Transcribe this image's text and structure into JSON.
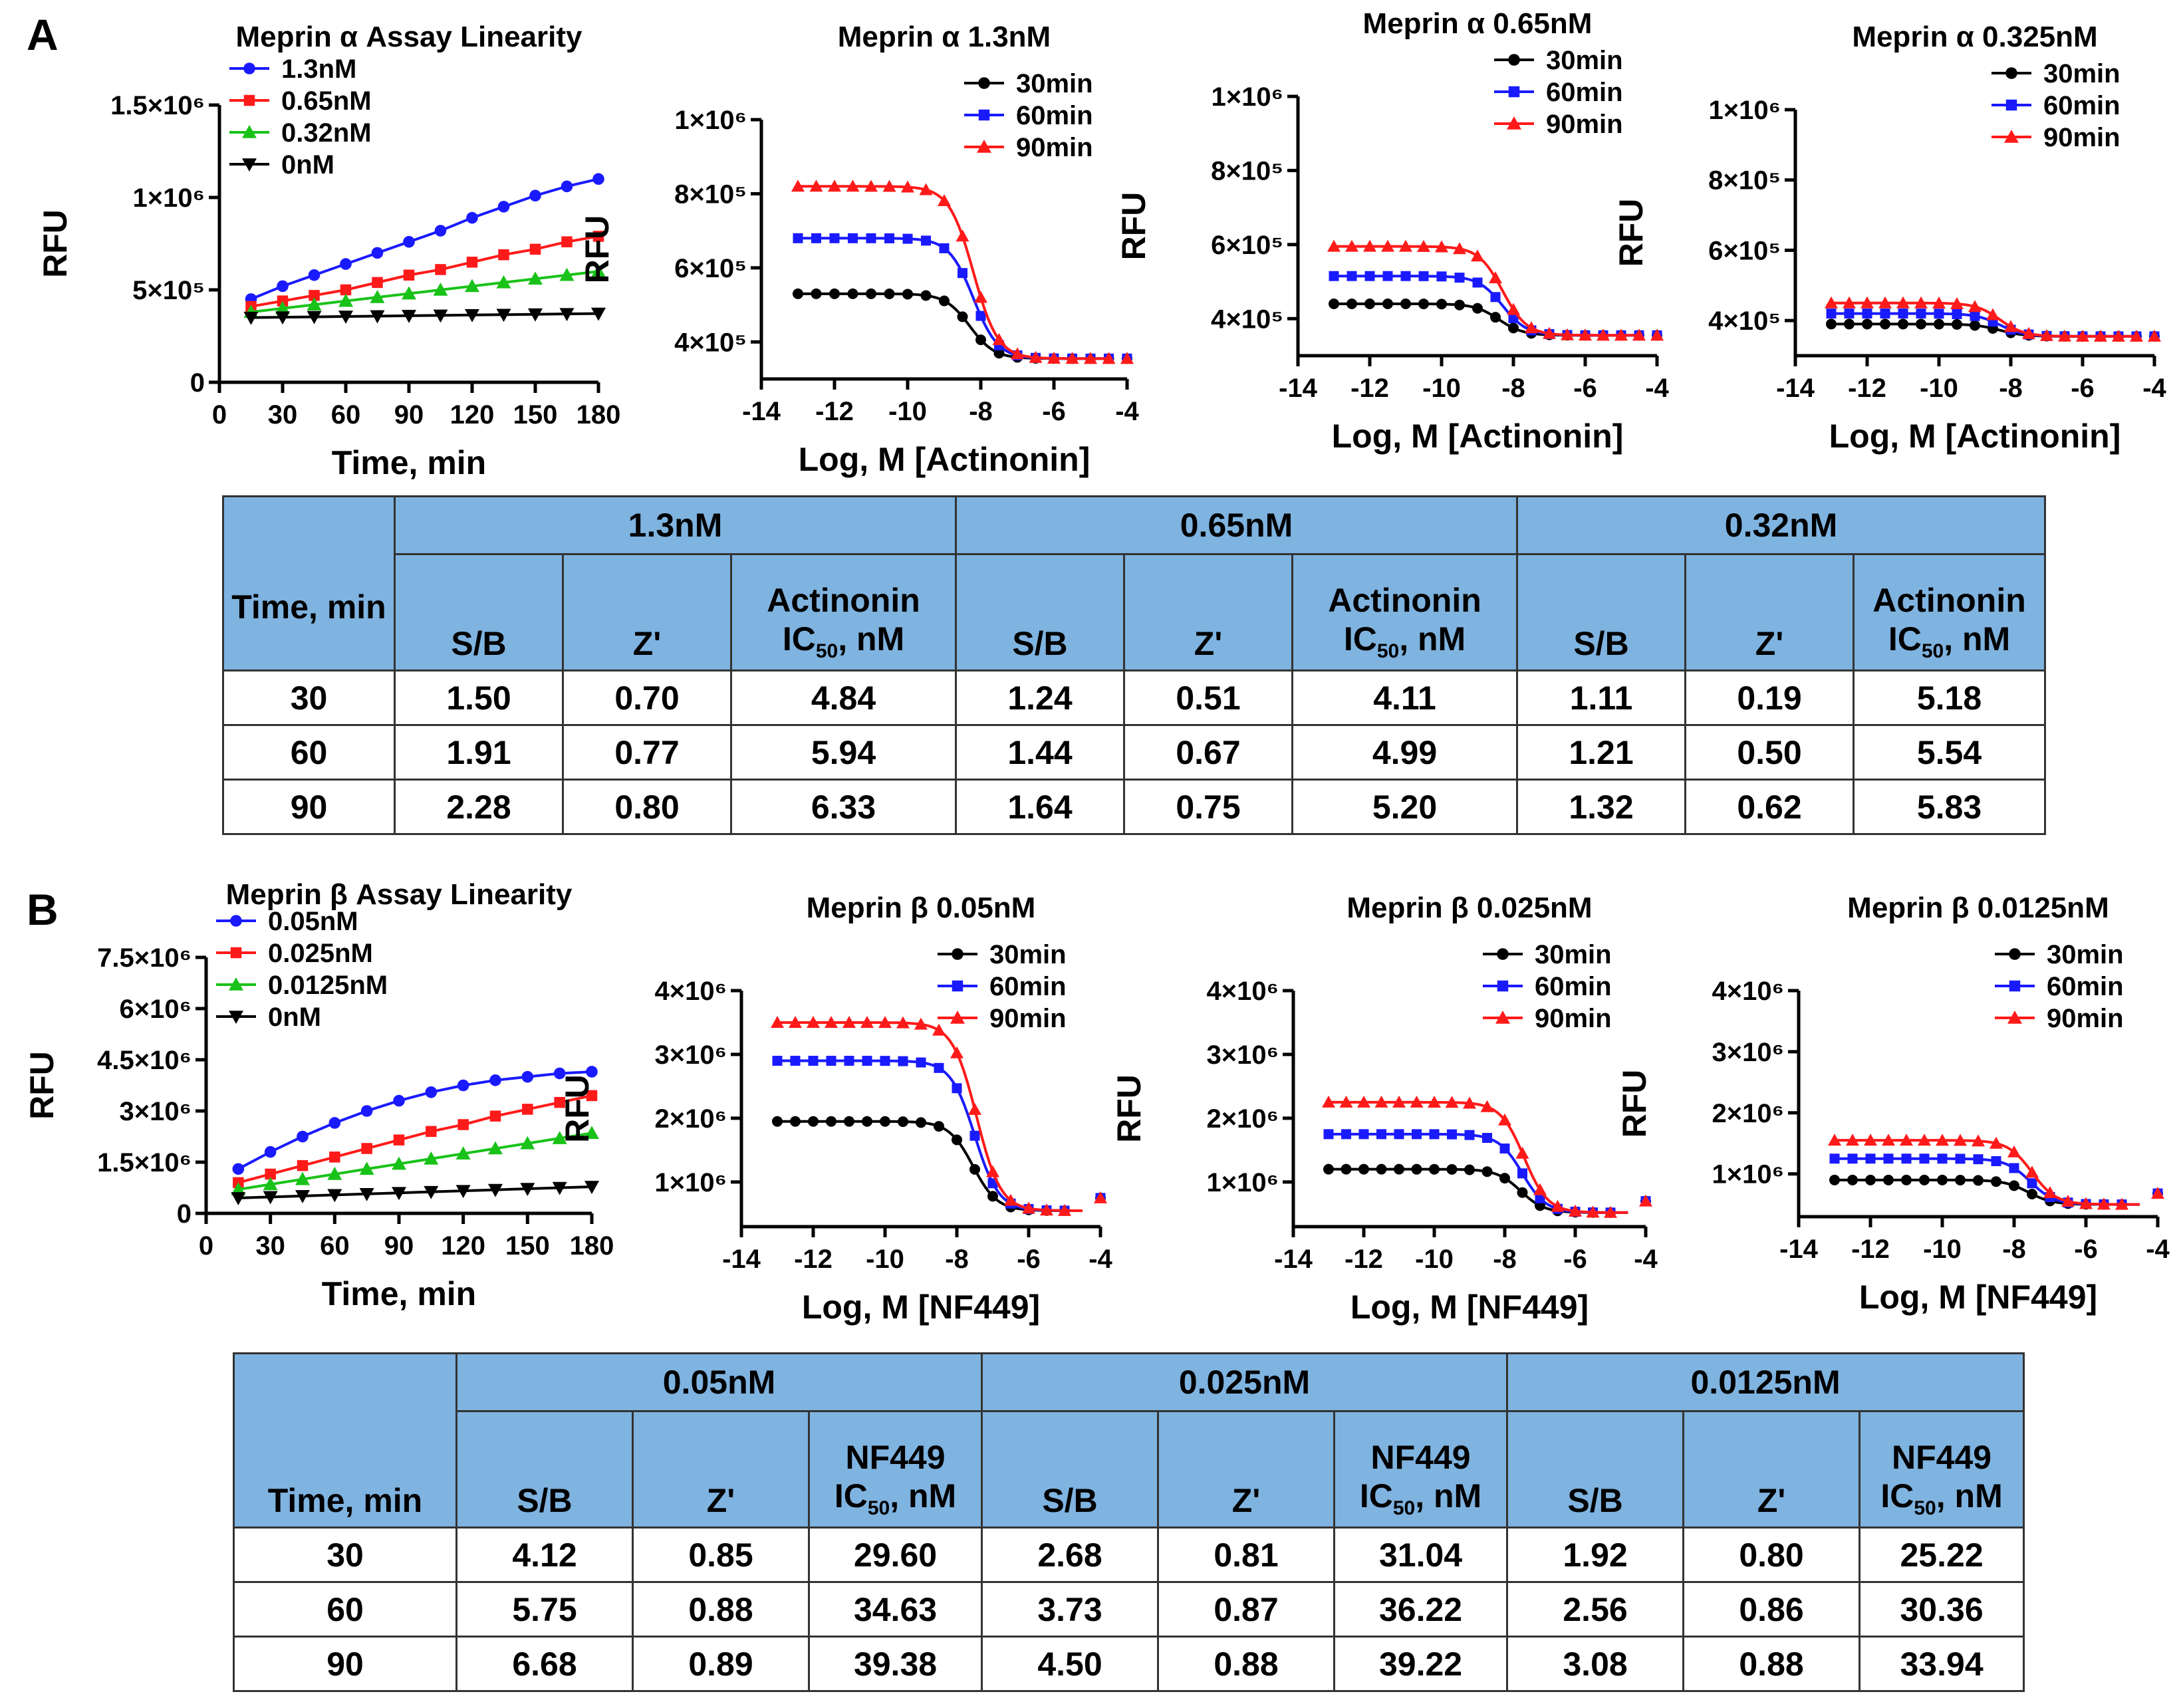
{
  "panel_labels": {
    "a": "A",
    "b": "B"
  },
  "colors": {
    "blue": "#1a1aff",
    "red": "#ff1a1a",
    "green": "#19c219",
    "black": "#000000",
    "header": "#7fb3e0"
  },
  "chart_data": [
    {
      "id": "a_lin",
      "type": "line",
      "title": "Meprin α Assay Linearity",
      "xlabel": "Time, min",
      "ylabel": "RFU",
      "xlim": [
        0,
        180
      ],
      "ylim": [
        0,
        1500000
      ],
      "xticks": [
        0,
        30,
        60,
        90,
        120,
        150,
        180
      ],
      "xtick_labels": [
        "0",
        "30",
        "60",
        "90",
        "120",
        "150",
        "180"
      ],
      "yticks": [
        0,
        500000,
        1000000,
        1500000
      ],
      "ytick_labels": [
        "0",
        "5×10⁵",
        "1×10⁶",
        "1.5×10⁶"
      ],
      "legend": "top-left",
      "x": [
        15,
        30,
        45,
        60,
        75,
        90,
        105,
        120,
        135,
        150,
        165,
        180
      ],
      "series": [
        {
          "name": "1.3nM",
          "color": "blue",
          "marker": "circle",
          "values": [
            450000,
            520000,
            580000,
            640000,
            700000,
            760000,
            820000,
            890000,
            950000,
            1010000,
            1060000,
            1100000
          ]
        },
        {
          "name": "0.65nM",
          "color": "red",
          "marker": "square",
          "values": [
            410000,
            440000,
            470000,
            500000,
            540000,
            580000,
            610000,
            650000,
            690000,
            720000,
            760000,
            790000
          ]
        },
        {
          "name": "0.32nM",
          "color": "green",
          "marker": "triangle",
          "values": [
            380000,
            400000,
            420000,
            440000,
            460000,
            480000,
            500000,
            520000,
            540000,
            560000,
            580000,
            600000
          ]
        },
        {
          "name": "0nM",
          "color": "black",
          "marker": "tri-down",
          "values": [
            350000,
            352000,
            354000,
            356000,
            358000,
            360000,
            362000,
            364000,
            366000,
            368000,
            370000,
            372000
          ]
        }
      ]
    },
    {
      "id": "a1",
      "type": "line",
      "title": "Meprin α 1.3nM",
      "xlabel": "Log, M [Actinonin]",
      "ylabel": "RFU",
      "xlim": [
        -14,
        -4
      ],
      "ylim": [
        300000,
        1000000
      ],
      "xticks": [
        -14,
        -12,
        -10,
        -8,
        -6,
        -4
      ],
      "xtick_labels": [
        "-14",
        "-12",
        "-10",
        "-8",
        "-6",
        "-4"
      ],
      "yticks": [
        400000,
        600000,
        800000,
        1000000
      ],
      "ytick_labels": [
        "4×10⁵",
        "6×10⁵",
        "8×10⁵",
        "1×10⁶"
      ],
      "legend": "top-right",
      "x": [
        -13,
        -12.5,
        -12,
        -11.5,
        -11,
        -10.5,
        -10,
        -9.5,
        -9,
        -8.5,
        -8,
        -7.5,
        -7,
        -6.5,
        -6,
        -5.5,
        -5,
        -4.5,
        -4
      ],
      "series": [
        {
          "name": "30min",
          "color": "black",
          "marker": "circle",
          "top": 530000,
          "bottom": 355000,
          "ec50": -8.3
        },
        {
          "name": "60min",
          "color": "blue",
          "marker": "square",
          "top": 680000,
          "bottom": 355000,
          "ec50": -8.2
        },
        {
          "name": "90min",
          "color": "red",
          "marker": "triangle",
          "top": 820000,
          "bottom": 355000,
          "ec50": -8.2
        }
      ]
    },
    {
      "id": "a2",
      "type": "line",
      "title": "Meprin α 0.65nM",
      "xlabel": "Log, M [Actinonin]",
      "ylabel": "RFU",
      "xlim": [
        -14,
        -4
      ],
      "ylim": [
        300000,
        1000000
      ],
      "xticks": [
        -14,
        -12,
        -10,
        -8,
        -6,
        -4
      ],
      "xtick_labels": [
        "-14",
        "-12",
        "-10",
        "-8",
        "-6",
        "-4"
      ],
      "yticks": [
        400000,
        600000,
        800000,
        1000000
      ],
      "ytick_labels": [
        "4×10⁵",
        "6×10⁵",
        "8×10⁵",
        "1×10⁶"
      ],
      "legend": "top-right",
      "x": [
        -13,
        -12.5,
        -12,
        -11.5,
        -11,
        -10.5,
        -10,
        -9.5,
        -9,
        -8.5,
        -8,
        -7.5,
        -7,
        -6.5,
        -6,
        -5.5,
        -5,
        -4.5,
        -4
      ],
      "series": [
        {
          "name": "30min",
          "color": "black",
          "marker": "circle",
          "top": 440000,
          "bottom": 355000,
          "ec50": -8.4
        },
        {
          "name": "60min",
          "color": "blue",
          "marker": "square",
          "top": 515000,
          "bottom": 355000,
          "ec50": -8.3
        },
        {
          "name": "90min",
          "color": "red",
          "marker": "triangle",
          "top": 595000,
          "bottom": 355000,
          "ec50": -8.3
        }
      ]
    },
    {
      "id": "a3",
      "type": "line",
      "title": "Meprin α 0.325nM",
      "xlabel": "Log, M [Actinonin]",
      "ylabel": "RFU",
      "xlim": [
        -14,
        -4
      ],
      "ylim": [
        300000,
        1000000
      ],
      "xticks": [
        -14,
        -12,
        -10,
        -8,
        -6,
        -4
      ],
      "xtick_labels": [
        "-14",
        "-12",
        "-10",
        "-8",
        "-6",
        "-4"
      ],
      "yticks": [
        400000,
        600000,
        800000,
        1000000
      ],
      "ytick_labels": [
        "4×10⁵",
        "6×10⁵",
        "8×10⁵",
        "1×10⁶"
      ],
      "legend": "top-right",
      "x": [
        -13,
        -12.5,
        -12,
        -11.5,
        -11,
        -10.5,
        -10,
        -9.5,
        -9,
        -8.5,
        -8,
        -7.5,
        -7,
        -6.5,
        -6,
        -5.5,
        -5,
        -4.5,
        -4
      ],
      "series": [
        {
          "name": "30min",
          "color": "black",
          "marker": "circle",
          "top": 390000,
          "bottom": 355000,
          "ec50": -8.3
        },
        {
          "name": "60min",
          "color": "blue",
          "marker": "square",
          "top": 420000,
          "bottom": 355000,
          "ec50": -8.3
        },
        {
          "name": "90min",
          "color": "red",
          "marker": "triangle",
          "top": 450000,
          "bottom": 355000,
          "ec50": -8.3
        }
      ]
    },
    {
      "id": "b_lin",
      "type": "line",
      "title": "Meprin β Assay Linearity",
      "xlabel": "Time, min",
      "ylabel": "RFU",
      "xlim": [
        0,
        180
      ],
      "ylim": [
        0,
        7500000
      ],
      "xticks": [
        0,
        30,
        60,
        90,
        120,
        150,
        180
      ],
      "xtick_labels": [
        "0",
        "30",
        "60",
        "90",
        "120",
        "150",
        "180"
      ],
      "yticks": [
        0,
        1500000,
        3000000,
        4500000,
        6000000,
        7500000
      ],
      "ytick_labels": [
        "0",
        "1.5×10⁶",
        "3×10⁶",
        "4.5×10⁶",
        "6×10⁶",
        "7.5×10⁶"
      ],
      "legend": "top-left",
      "x": [
        15,
        30,
        45,
        60,
        75,
        90,
        105,
        120,
        135,
        150,
        165,
        180
      ],
      "series": [
        {
          "name": "0.05nM",
          "color": "blue",
          "marker": "circle",
          "values": [
            1300000,
            1800000,
            2250000,
            2650000,
            3000000,
            3300000,
            3550000,
            3750000,
            3900000,
            4000000,
            4100000,
            4150000
          ]
        },
        {
          "name": "0.025nM",
          "color": "red",
          "marker": "square",
          "values": [
            900000,
            1150000,
            1400000,
            1650000,
            1900000,
            2150000,
            2400000,
            2600000,
            2850000,
            3050000,
            3250000,
            3450000
          ]
        },
        {
          "name": "0.0125nM",
          "color": "green",
          "marker": "triangle",
          "values": [
            700000,
            850000,
            1000000,
            1150000,
            1300000,
            1450000,
            1600000,
            1750000,
            1900000,
            2050000,
            2200000,
            2350000
          ]
        },
        {
          "name": "0nM",
          "color": "black",
          "marker": "tri-down",
          "values": [
            450000,
            480000,
            510000,
            540000,
            570000,
            600000,
            630000,
            660000,
            690000,
            720000,
            750000,
            780000
          ]
        }
      ]
    },
    {
      "id": "b1",
      "type": "line",
      "title": "Meprin β 0.05nM",
      "xlabel": "Log, M [NF449]",
      "ylabel": "RFU",
      "xlim": [
        -14,
        -4
      ],
      "ylim": [
        300000,
        4000000
      ],
      "xticks": [
        -14,
        -12,
        -10,
        -8,
        -6,
        -4
      ],
      "xtick_labels": [
        "-14",
        "-12",
        "-10",
        "-8",
        "-6",
        "-4"
      ],
      "yticks": [
        1000000,
        2000000,
        3000000,
        4000000
      ],
      "ytick_labels": [
        "1×10⁶",
        "2×10⁶",
        "3×10⁶",
        "4×10⁶"
      ],
      "legend": "top-right",
      "x": [
        -13,
        -12.5,
        -12,
        -11.5,
        -11,
        -10.5,
        -10,
        -9.5,
        -9,
        -8.5,
        -8,
        -7.5,
        -7,
        -6.5,
        -6,
        -5.5,
        -5,
        -4
      ],
      "series": [
        {
          "name": "30min",
          "color": "black",
          "marker": "circle",
          "top": 1950000,
          "bottom": 550000,
          "ec50": -7.55,
          "last": 750000
        },
        {
          "name": "60min",
          "color": "blue",
          "marker": "square",
          "top": 2900000,
          "bottom": 550000,
          "ec50": -7.5,
          "last": 750000
        },
        {
          "name": "90min",
          "color": "red",
          "marker": "triangle",
          "top": 3500000,
          "bottom": 550000,
          "ec50": -7.45,
          "last": 750000
        }
      ]
    },
    {
      "id": "b2",
      "type": "line",
      "title": "Meprin β 0.025nM",
      "xlabel": "Log, M [NF449]",
      "ylabel": "RFU",
      "xlim": [
        -14,
        -4
      ],
      "ylim": [
        300000,
        4000000
      ],
      "xticks": [
        -14,
        -12,
        -10,
        -8,
        -6,
        -4
      ],
      "xtick_labels": [
        "-14",
        "-12",
        "-10",
        "-8",
        "-6",
        "-4"
      ],
      "yticks": [
        1000000,
        2000000,
        3000000,
        4000000
      ],
      "ytick_labels": [
        "1×10⁶",
        "2×10⁶",
        "3×10⁶",
        "4×10⁶"
      ],
      "legend": "top-right",
      "x": [
        -13,
        -12.5,
        -12,
        -11.5,
        -11,
        -10.5,
        -10,
        -9.5,
        -9,
        -8.5,
        -8,
        -7.5,
        -7,
        -6.5,
        -6,
        -5.5,
        -5,
        -4
      ],
      "series": [
        {
          "name": "30min",
          "color": "black",
          "marker": "circle",
          "top": 1200000,
          "bottom": 520000,
          "ec50": -7.55,
          "last": 700000
        },
        {
          "name": "60min",
          "color": "blue",
          "marker": "square",
          "top": 1750000,
          "bottom": 520000,
          "ec50": -7.5,
          "last": 700000
        },
        {
          "name": "90min",
          "color": "red",
          "marker": "triangle",
          "top": 2250000,
          "bottom": 520000,
          "ec50": -7.45,
          "last": 700000
        }
      ]
    },
    {
      "id": "b3",
      "type": "line",
      "title": "Meprin β 0.0125nM",
      "xlabel": "Log, M [NF449]",
      "ylabel": "RFU",
      "xlim": [
        -14,
        -4
      ],
      "ylim": [
        300000,
        4000000
      ],
      "xticks": [
        -14,
        -12,
        -10,
        -8,
        -6,
        -4
      ],
      "xtick_labels": [
        "-14",
        "-12",
        "-10",
        "-8",
        "-6",
        "-4"
      ],
      "yticks": [
        1000000,
        2000000,
        3000000,
        4000000
      ],
      "ytick_labels": [
        "1×10⁶",
        "2×10⁶",
        "3×10⁶",
        "4×10⁶"
      ],
      "legend": "top-right",
      "x": [
        -13,
        -12.5,
        -12,
        -11.5,
        -11,
        -10.5,
        -10,
        -9.5,
        -9,
        -8.5,
        -8,
        -7.5,
        -7,
        -6.5,
        -6,
        -5.5,
        -5,
        -4
      ],
      "series": [
        {
          "name": "30min",
          "color": "black",
          "marker": "circle",
          "top": 900000,
          "bottom": 500000,
          "ec50": -7.6,
          "last": 680000
        },
        {
          "name": "60min",
          "color": "blue",
          "marker": "square",
          "top": 1250000,
          "bottom": 500000,
          "ec50": -7.55,
          "last": 680000
        },
        {
          "name": "90min",
          "color": "red",
          "marker": "triangle",
          "top": 1550000,
          "bottom": 500000,
          "ec50": -7.5,
          "last": 680000
        }
      ]
    },
    {
      "id": "table_a",
      "type": "table",
      "time_header": "Time, min",
      "groups": [
        "1.3nM",
        "0.65nM",
        "0.32nM"
      ],
      "col_sb": "S/B",
      "col_z": "Z'",
      "col_ic_top": "Actinonin",
      "col_ic_base": "IC",
      "col_ic_sub": "50",
      "col_ic_unit": ", nM",
      "rows": [
        [
          "30",
          "1.50",
          "0.70",
          "4.84",
          "1.24",
          "0.51",
          "4.11",
          "1.11",
          "0.19",
          "5.18"
        ],
        [
          "60",
          "1.91",
          "0.77",
          "5.94",
          "1.44",
          "0.67",
          "4.99",
          "1.21",
          "0.50",
          "5.54"
        ],
        [
          "90",
          "2.28",
          "0.80",
          "6.33",
          "1.64",
          "0.75",
          "5.20",
          "1.32",
          "0.62",
          "5.83"
        ]
      ]
    },
    {
      "id": "table_b",
      "type": "table",
      "time_header": "Time, min",
      "groups": [
        "0.05nM",
        "0.025nM",
        "0.0125nM"
      ],
      "col_sb": "S/B",
      "col_z": "Z'",
      "col_ic_top": "NF449",
      "col_ic_base": "IC",
      "col_ic_sub": "50",
      "col_ic_unit": ", nM",
      "rows": [
        [
          "30",
          "4.12",
          "0.85",
          "29.60",
          "2.68",
          "0.81",
          "31.04",
          "1.92",
          "0.80",
          "25.22"
        ],
        [
          "60",
          "5.75",
          "0.88",
          "34.63",
          "3.73",
          "0.87",
          "36.22",
          "2.56",
          "0.86",
          "30.36"
        ],
        [
          "90",
          "6.68",
          "0.89",
          "39.38",
          "4.50",
          "0.88",
          "39.22",
          "3.08",
          "0.88",
          "33.94"
        ]
      ]
    }
  ]
}
